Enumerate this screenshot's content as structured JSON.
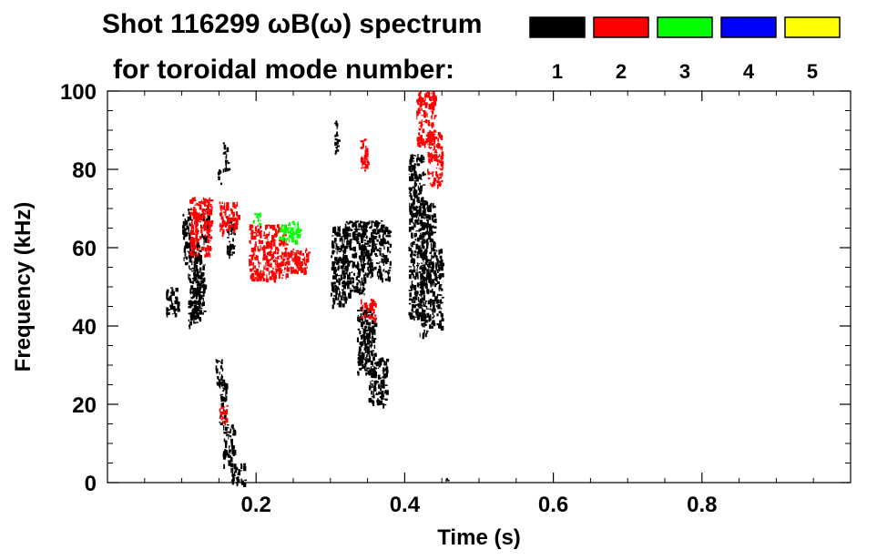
{
  "chart_data": {
    "type": "heatmap",
    "title_line1": "Shot 116299 ωB(ω) spectrum",
    "title_line2": "for toroidal mode number:",
    "xlabel": "Time (s)",
    "ylabel": "Frequency (kHz)",
    "xlim": [
      0,
      1.0
    ],
    "ylim": [
      0,
      100
    ],
    "x_ticks": [
      0.2,
      0.4,
      0.6,
      0.8
    ],
    "y_ticks": [
      0,
      20,
      40,
      60,
      80,
      100
    ],
    "grid": false,
    "legend_placement": "top-right",
    "legend": [
      {
        "label": "1",
        "color": "#000000"
      },
      {
        "label": "2",
        "color": "#ff0000"
      },
      {
        "label": "3",
        "color": "#00ff00"
      },
      {
        "label": "4",
        "color": "#0000ff"
      },
      {
        "label": "5",
        "color": "#ffff00"
      }
    ],
    "regions": [
      {
        "mode": 1,
        "t": [
          0.078,
          0.094
        ],
        "f": [
          43,
          50
        ]
      },
      {
        "mode": 1,
        "t": [
          0.1,
          0.112
        ],
        "f": [
          55,
          70
        ]
      },
      {
        "mode": 1,
        "t": [
          0.108,
          0.125
        ],
        "f": [
          40,
          62
        ]
      },
      {
        "mode": 1,
        "t": [
          0.115,
          0.13
        ],
        "f": [
          42,
          56
        ]
      },
      {
        "mode": 1,
        "t": [
          0.125,
          0.135
        ],
        "f": [
          62,
          70
        ]
      },
      {
        "mode": 1,
        "t": [
          0.145,
          0.155
        ],
        "f": [
          25,
          32
        ]
      },
      {
        "mode": 1,
        "t": [
          0.15,
          0.16
        ],
        "f": [
          15,
          26
        ]
      },
      {
        "mode": 1,
        "t": [
          0.155,
          0.17
        ],
        "f": [
          4,
          15
        ]
      },
      {
        "mode": 1,
        "t": [
          0.165,
          0.185
        ],
        "f": [
          0,
          5
        ]
      },
      {
        "mode": 1,
        "t": [
          0.155,
          0.162
        ],
        "f": [
          80,
          87
        ]
      },
      {
        "mode": 1,
        "t": [
          0.148,
          0.153
        ],
        "f": [
          76,
          80
        ]
      },
      {
        "mode": 1,
        "t": [
          0.16,
          0.17
        ],
        "f": [
          58,
          68
        ]
      },
      {
        "mode": 1,
        "t": [
          0.3,
          0.32
        ],
        "f": [
          45,
          66
        ]
      },
      {
        "mode": 1,
        "t": [
          0.315,
          0.345
        ],
        "f": [
          48,
          67
        ]
      },
      {
        "mode": 1,
        "t": [
          0.34,
          0.38
        ],
        "f": [
          52,
          67
        ]
      },
      {
        "mode": 1,
        "t": [
          0.335,
          0.36
        ],
        "f": [
          28,
          45
        ]
      },
      {
        "mode": 1,
        "t": [
          0.35,
          0.375
        ],
        "f": [
          20,
          32
        ]
      },
      {
        "mode": 1,
        "t": [
          0.305,
          0.31
        ],
        "f": [
          84,
          93
        ]
      },
      {
        "mode": 1,
        "t": [
          0.405,
          0.425
        ],
        "f": [
          42,
          84
        ]
      },
      {
        "mode": 1,
        "t": [
          0.42,
          0.44
        ],
        "f": [
          38,
          72
        ]
      },
      {
        "mode": 1,
        "t": [
          0.44,
          0.45
        ],
        "f": [
          40,
          60
        ]
      },
      {
        "mode": 1,
        "t": [
          0.455,
          0.46
        ],
        "f": [
          0,
          1.5
        ]
      },
      {
        "mode": 2,
        "t": [
          0.11,
          0.14
        ],
        "f": [
          58,
          73
        ]
      },
      {
        "mode": 2,
        "t": [
          0.15,
          0.175
        ],
        "f": [
          64,
          72
        ]
      },
      {
        "mode": 2,
        "t": [
          0.19,
          0.24
        ],
        "f": [
          52,
          66
        ]
      },
      {
        "mode": 2,
        "t": [
          0.24,
          0.27
        ],
        "f": [
          54,
          60
        ]
      },
      {
        "mode": 2,
        "t": [
          0.15,
          0.16
        ],
        "f": [
          15,
          20
        ]
      },
      {
        "mode": 2,
        "t": [
          0.34,
          0.35
        ],
        "f": [
          80,
          88
        ]
      },
      {
        "mode": 2,
        "t": [
          0.34,
          0.36
        ],
        "f": [
          42,
          47
        ]
      },
      {
        "mode": 2,
        "t": [
          0.415,
          0.44
        ],
        "f": [
          86,
          100
        ]
      },
      {
        "mode": 2,
        "t": [
          0.43,
          0.45
        ],
        "f": [
          76,
          90
        ]
      },
      {
        "mode": 3,
        "t": [
          0.23,
          0.26
        ],
        "f": [
          62,
          67
        ]
      },
      {
        "mode": 3,
        "t": [
          0.195,
          0.205
        ],
        "f": [
          66,
          69
        ]
      }
    ]
  }
}
